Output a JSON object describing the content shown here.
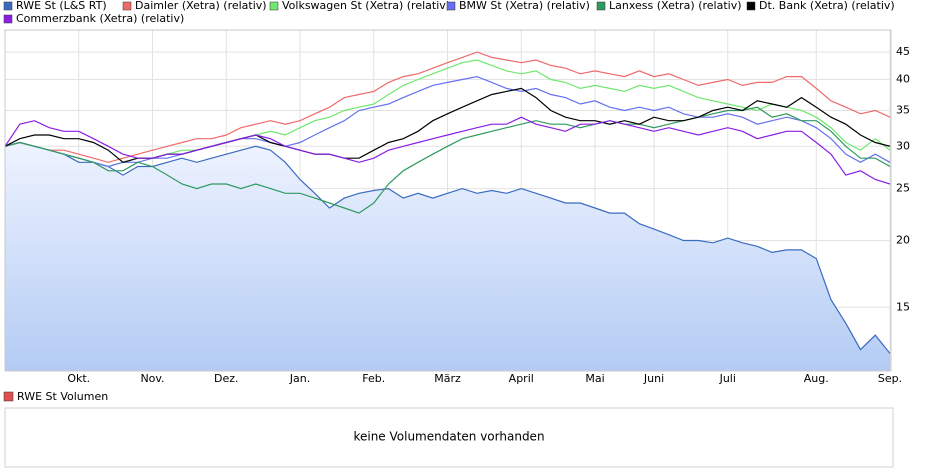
{
  "chart_data": {
    "type": "line",
    "log_y": true,
    "grid": true,
    "legend": "top",
    "categories": [
      null,
      null,
      null,
      null,
      null,
      "Okt.",
      null,
      null,
      null,
      null,
      "Nov.",
      null,
      null,
      null,
      null,
      "Dez.",
      null,
      null,
      null,
      null,
      "Jan.",
      null,
      null,
      null,
      null,
      "Feb.",
      null,
      null,
      null,
      null,
      "März",
      null,
      null,
      null,
      null,
      "April",
      null,
      null,
      null,
      null,
      "Mai",
      null,
      null,
      null,
      "Juni",
      null,
      null,
      null,
      null,
      "Juli",
      null,
      null,
      null,
      null,
      null,
      "Aug.",
      null,
      null,
      null,
      null,
      "Sep."
    ],
    "ylim": [
      11.4,
      49.5
    ],
    "yticks": [
      15,
      20,
      25,
      30,
      35,
      40,
      45
    ],
    "series": [
      {
        "name": "RWE St (L&S RT)",
        "color": "#3a6bc0",
        "area": true,
        "values": [
          30,
          30.5,
          30,
          29.5,
          29,
          28,
          28,
          27.5,
          26.5,
          27.5,
          27.5,
          28,
          28.5,
          28,
          28.5,
          29,
          29.5,
          30,
          29.5,
          28,
          26,
          24.5,
          23,
          24,
          24.5,
          24.8,
          25,
          24,
          24.5,
          24,
          24.5,
          25,
          24.5,
          24.8,
          24.5,
          25,
          24.5,
          24,
          23.5,
          23.5,
          23,
          22.5,
          22.5,
          21.5,
          21,
          20.5,
          20,
          20,
          19.8,
          20.2,
          19.8,
          19.5,
          19,
          19.2,
          19.2,
          18.5,
          15.5,
          14,
          12.5,
          13.3,
          12.3
        ]
      },
      {
        "name": "Daimler (Xetra) (relativ)",
        "color": "#f06a6a",
        "values": [
          30,
          30.5,
          30,
          29.5,
          29.5,
          29,
          28.5,
          28,
          28.5,
          29,
          29.5,
          30,
          30.5,
          31,
          31,
          31.5,
          32.5,
          33,
          33.5,
          33,
          33.5,
          34.5,
          35.5,
          37,
          37.5,
          38,
          39.5,
          40.5,
          41,
          42,
          43,
          44,
          45,
          44,
          43.5,
          43,
          43.5,
          42.5,
          42,
          41,
          41.5,
          41,
          40.5,
          41.5,
          40.5,
          41,
          40,
          39,
          39.5,
          40,
          39,
          39.5,
          39.5,
          40.5,
          40.5,
          38.5,
          36.5,
          35.5,
          34.5,
          35,
          34
        ]
      },
      {
        "name": "Volkswagen St (Xetra) (relativ)",
        "color": "#6ee86e",
        "values": [
          30,
          30.5,
          30,
          29.5,
          29,
          28.5,
          28,
          27.5,
          28,
          28.5,
          28.5,
          29,
          29.5,
          29.5,
          30,
          30.5,
          31,
          31.5,
          32,
          31.5,
          32.5,
          33.5,
          34,
          35,
          35.5,
          36,
          37.5,
          39,
          40,
          41,
          42,
          43,
          43.5,
          42.5,
          41.5,
          41,
          41.5,
          40,
          39.5,
          38.5,
          39,
          38.5,
          38,
          39,
          38.5,
          39,
          38,
          37,
          36.5,
          36,
          35.5,
          35,
          36,
          35.5,
          35,
          34,
          32.5,
          30.5,
          29.5,
          31,
          29.5
        ]
      },
      {
        "name": "BMW St (Xetra) (relativ)",
        "color": "#6670f0",
        "values": [
          30,
          30.5,
          30,
          29.5,
          29,
          28.5,
          28,
          27.5,
          28,
          28,
          28.5,
          28.5,
          29,
          29.5,
          30,
          30.5,
          31,
          31,
          30.5,
          30,
          30.5,
          31.5,
          32.5,
          33.5,
          35,
          35.5,
          36,
          37,
          38,
          39,
          39.5,
          40,
          40.5,
          39.5,
          38.5,
          38,
          38.5,
          37.5,
          37,
          36,
          36.5,
          35.5,
          35,
          35.5,
          35,
          35.5,
          34.5,
          34,
          34,
          34.5,
          34,
          33,
          33.5,
          34,
          33.5,
          32.5,
          31,
          29,
          28,
          29,
          28
        ]
      },
      {
        "name": "Lanxess (Xetra) (relativ)",
        "color": "#2f9a5e",
        "values": [
          30,
          30.5,
          30,
          29.5,
          29,
          28.5,
          28,
          27,
          27,
          28,
          27.5,
          26.5,
          25.5,
          25,
          25.5,
          25.5,
          25,
          25.5,
          25,
          24.5,
          24.5,
          24,
          23.5,
          23,
          22.5,
          23.5,
          25.5,
          27,
          28,
          29,
          30,
          31,
          31.5,
          32,
          32.5,
          33,
          33.5,
          33,
          33,
          32.5,
          33,
          33.5,
          33,
          33,
          32.5,
          33,
          33.5,
          34,
          34.5,
          35,
          35,
          35.5,
          34,
          34.5,
          33.5,
          33.5,
          32,
          30,
          28.5,
          28.5,
          27.5
        ]
      },
      {
        "name": "Dt. Bank (Xetra) (relativ)",
        "color": "#000000",
        "values": [
          30,
          31,
          31.5,
          31.5,
          31,
          31,
          30.5,
          29.5,
          28,
          28.5,
          28.5,
          29,
          29,
          29.5,
          30,
          30.5,
          31,
          31.5,
          30.5,
          30,
          29.5,
          29,
          29,
          28.5,
          28.5,
          29.5,
          30.5,
          31,
          32,
          33.5,
          34.5,
          35.5,
          36.5,
          37.5,
          38,
          38.5,
          37,
          35,
          34,
          33.5,
          33.5,
          33,
          33.5,
          33,
          34,
          33.5,
          33.5,
          34,
          35,
          35.5,
          35,
          36.5,
          36,
          35.5,
          37,
          35.5,
          34,
          33,
          31.5,
          30.5,
          30
        ]
      },
      {
        "name": "Commerzbank (Xetra) (relativ)",
        "color": "#8a1ee6",
        "values": [
          30,
          33,
          33.5,
          32.5,
          32,
          32,
          31,
          30,
          29,
          28.5,
          28.5,
          29,
          29,
          29.5,
          30,
          30.5,
          31,
          31.5,
          31,
          30,
          29.5,
          29,
          29,
          28.5,
          28,
          28.5,
          29.5,
          30,
          30.5,
          31,
          31.5,
          32,
          32.5,
          33,
          33,
          34,
          33,
          32.5,
          32,
          33,
          33,
          33.5,
          33,
          32.5,
          32,
          32.5,
          32,
          31.5,
          32,
          32.5,
          32,
          31,
          31.5,
          32,
          32,
          30.5,
          29,
          26.5,
          27,
          26,
          25.5
        ]
      }
    ]
  },
  "volume": {
    "legend": "RWE St Volumen",
    "color": "#e05050",
    "message": "keine Volumendaten vorhanden"
  }
}
